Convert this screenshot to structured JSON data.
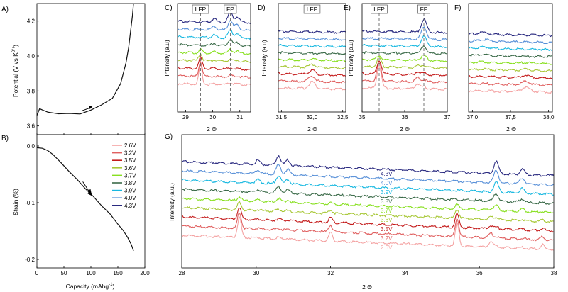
{
  "series_labels": [
    "2.6V",
    "3.2V",
    "3.5V",
    "3.6V",
    "3.7V",
    "3.8V",
    "3.9V",
    "4.0V",
    "4.3V"
  ],
  "series_colors": [
    "#f4a2a2",
    "#e06060",
    "#c41b1b",
    "#a8c838",
    "#88e020",
    "#3a6a48",
    "#18b8e0",
    "#5890d8",
    "#2a2a80"
  ],
  "chart_data": [
    {
      "panel": "A)",
      "type": "line",
      "xlabel": "",
      "ylabel": "Potential (V vs K",
      "ylabel_sup": "0/+",
      "xlim": [
        0,
        200
      ],
      "ylim": [
        3.55,
        4.3
      ],
      "yticks": [
        "3,6",
        "3,8",
        "4,0",
        "4,2"
      ],
      "ytick_values": [
        3.6,
        3.8,
        4.0,
        4.2
      ],
      "x": [
        0,
        5,
        10,
        20,
        40,
        60,
        80,
        100,
        120,
        140,
        155,
        165,
        170,
        174,
        177,
        179
      ],
      "y": [
        3.66,
        3.7,
        3.69,
        3.68,
        3.67,
        3.67,
        3.67,
        3.69,
        3.72,
        3.76,
        3.84,
        3.96,
        4.05,
        4.15,
        4.23,
        4.3
      ]
    },
    {
      "panel": "B)",
      "type": "line",
      "xlabel": "Capacity (mAhg",
      "xlabel_sup": "-1",
      "xlabel_tail": ")",
      "ylabel": "Strain (%)",
      "xlim": [
        0,
        200
      ],
      "ylim": [
        -0.215,
        0.02
      ],
      "xticks": [
        "0",
        "50",
        "100",
        "150",
        "200"
      ],
      "xtick_values": [
        0,
        50,
        100,
        150,
        200
      ],
      "yticks": [
        "0,0",
        "-0,1",
        "-0,2"
      ],
      "ytick_values": [
        0.0,
        -0.1,
        -0.2
      ],
      "x": [
        0,
        10,
        20,
        30,
        45,
        60,
        75,
        90,
        105,
        120,
        135,
        150,
        160,
        168,
        175,
        179
      ],
      "y": [
        -0.003,
        -0.004,
        -0.008,
        -0.015,
        -0.03,
        -0.045,
        -0.06,
        -0.075,
        -0.09,
        -0.105,
        -0.12,
        -0.137,
        -0.15,
        -0.16,
        -0.175,
        -0.185
      ]
    },
    {
      "panel": "C)",
      "type": "line",
      "xlabel": "2 Θ",
      "ylabel": "Intensity (a.u)",
      "xlim": [
        28.7,
        31.4
      ],
      "xticks": [
        "29",
        "30",
        "31"
      ],
      "xtick_values": [
        29,
        30,
        31
      ],
      "markers": [
        {
          "label": "LFP",
          "x": 29.55
        },
        {
          "label": "FP",
          "x": 30.65
        }
      ]
    },
    {
      "panel": "D)",
      "type": "line",
      "xlabel": "2 Θ",
      "ylabel": "Intensity (a.u)",
      "xlim": [
        31.45,
        32.55
      ],
      "xticks": [
        "31,5",
        "32,0",
        "32,5"
      ],
      "xtick_values": [
        31.5,
        32.0,
        32.5
      ],
      "markers": [
        {
          "label": "LFP",
          "x": 32.0
        }
      ]
    },
    {
      "panel": "E)",
      "type": "line",
      "xlabel": "2 Θ",
      "ylabel": "Intensity (a.u)",
      "xlim": [
        35.0,
        37.0
      ],
      "xticks": [
        "35",
        "36",
        "37"
      ],
      "xtick_values": [
        35,
        36,
        37
      ],
      "markers": [
        {
          "label": "LFP",
          "x": 35.4
        },
        {
          "label": "FP",
          "x": 36.45
        }
      ]
    },
    {
      "panel": "F)",
      "type": "line",
      "xlabel": "2 Θ",
      "ylabel": "",
      "xlim": [
        36.95,
        38.05
      ],
      "xticks": [
        "37,0",
        "37,5",
        "38,0"
      ],
      "xtick_values": [
        37.0,
        37.5,
        38.0
      ],
      "markers": []
    },
    {
      "panel": "G)",
      "type": "line",
      "xlabel": "2 Θ",
      "ylabel": "Intensity (a.u.)",
      "xlim": [
        28,
        38
      ],
      "xticks": [
        "28",
        "30",
        "32",
        "34",
        "36",
        "38"
      ],
      "xtick_values": [
        28,
        30,
        32,
        34,
        36,
        38
      ],
      "markers": []
    }
  ]
}
